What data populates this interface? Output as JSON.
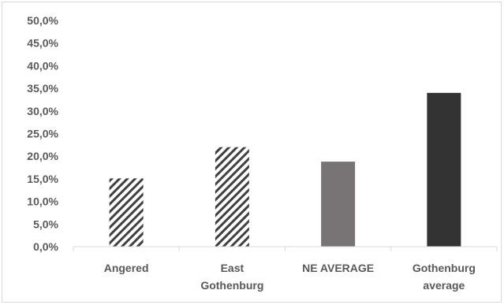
{
  "chart_data": {
    "type": "bar",
    "categories": [
      "Angered",
      "East Gothenburg",
      "NE AVERAGE",
      "Gothenburg average"
    ],
    "category_label_lines": [
      [
        "Angered"
      ],
      [
        "East",
        "Gothenburg"
      ],
      [
        "NE AVERAGE"
      ],
      [
        "Gothenburg",
        "average"
      ]
    ],
    "values": [
      15.1,
      22.0,
      18.8,
      34.0
    ],
    "bar_styles": [
      "hatched",
      "hatched",
      "solid",
      "solid"
    ],
    "bar_colors": [
      "#404040",
      "#404040",
      "#787374",
      "#333333"
    ],
    "ylim": [
      0,
      50
    ],
    "yticks": [
      "0,0%",
      "5,0%",
      "10,0%",
      "15,0%",
      "20,0%",
      "25,0%",
      "30,0%",
      "35,0%",
      "40,0%",
      "45,0%",
      "50,0%"
    ],
    "title": "",
    "xlabel": "",
    "ylabel": "",
    "grid": false,
    "legend": "none"
  }
}
